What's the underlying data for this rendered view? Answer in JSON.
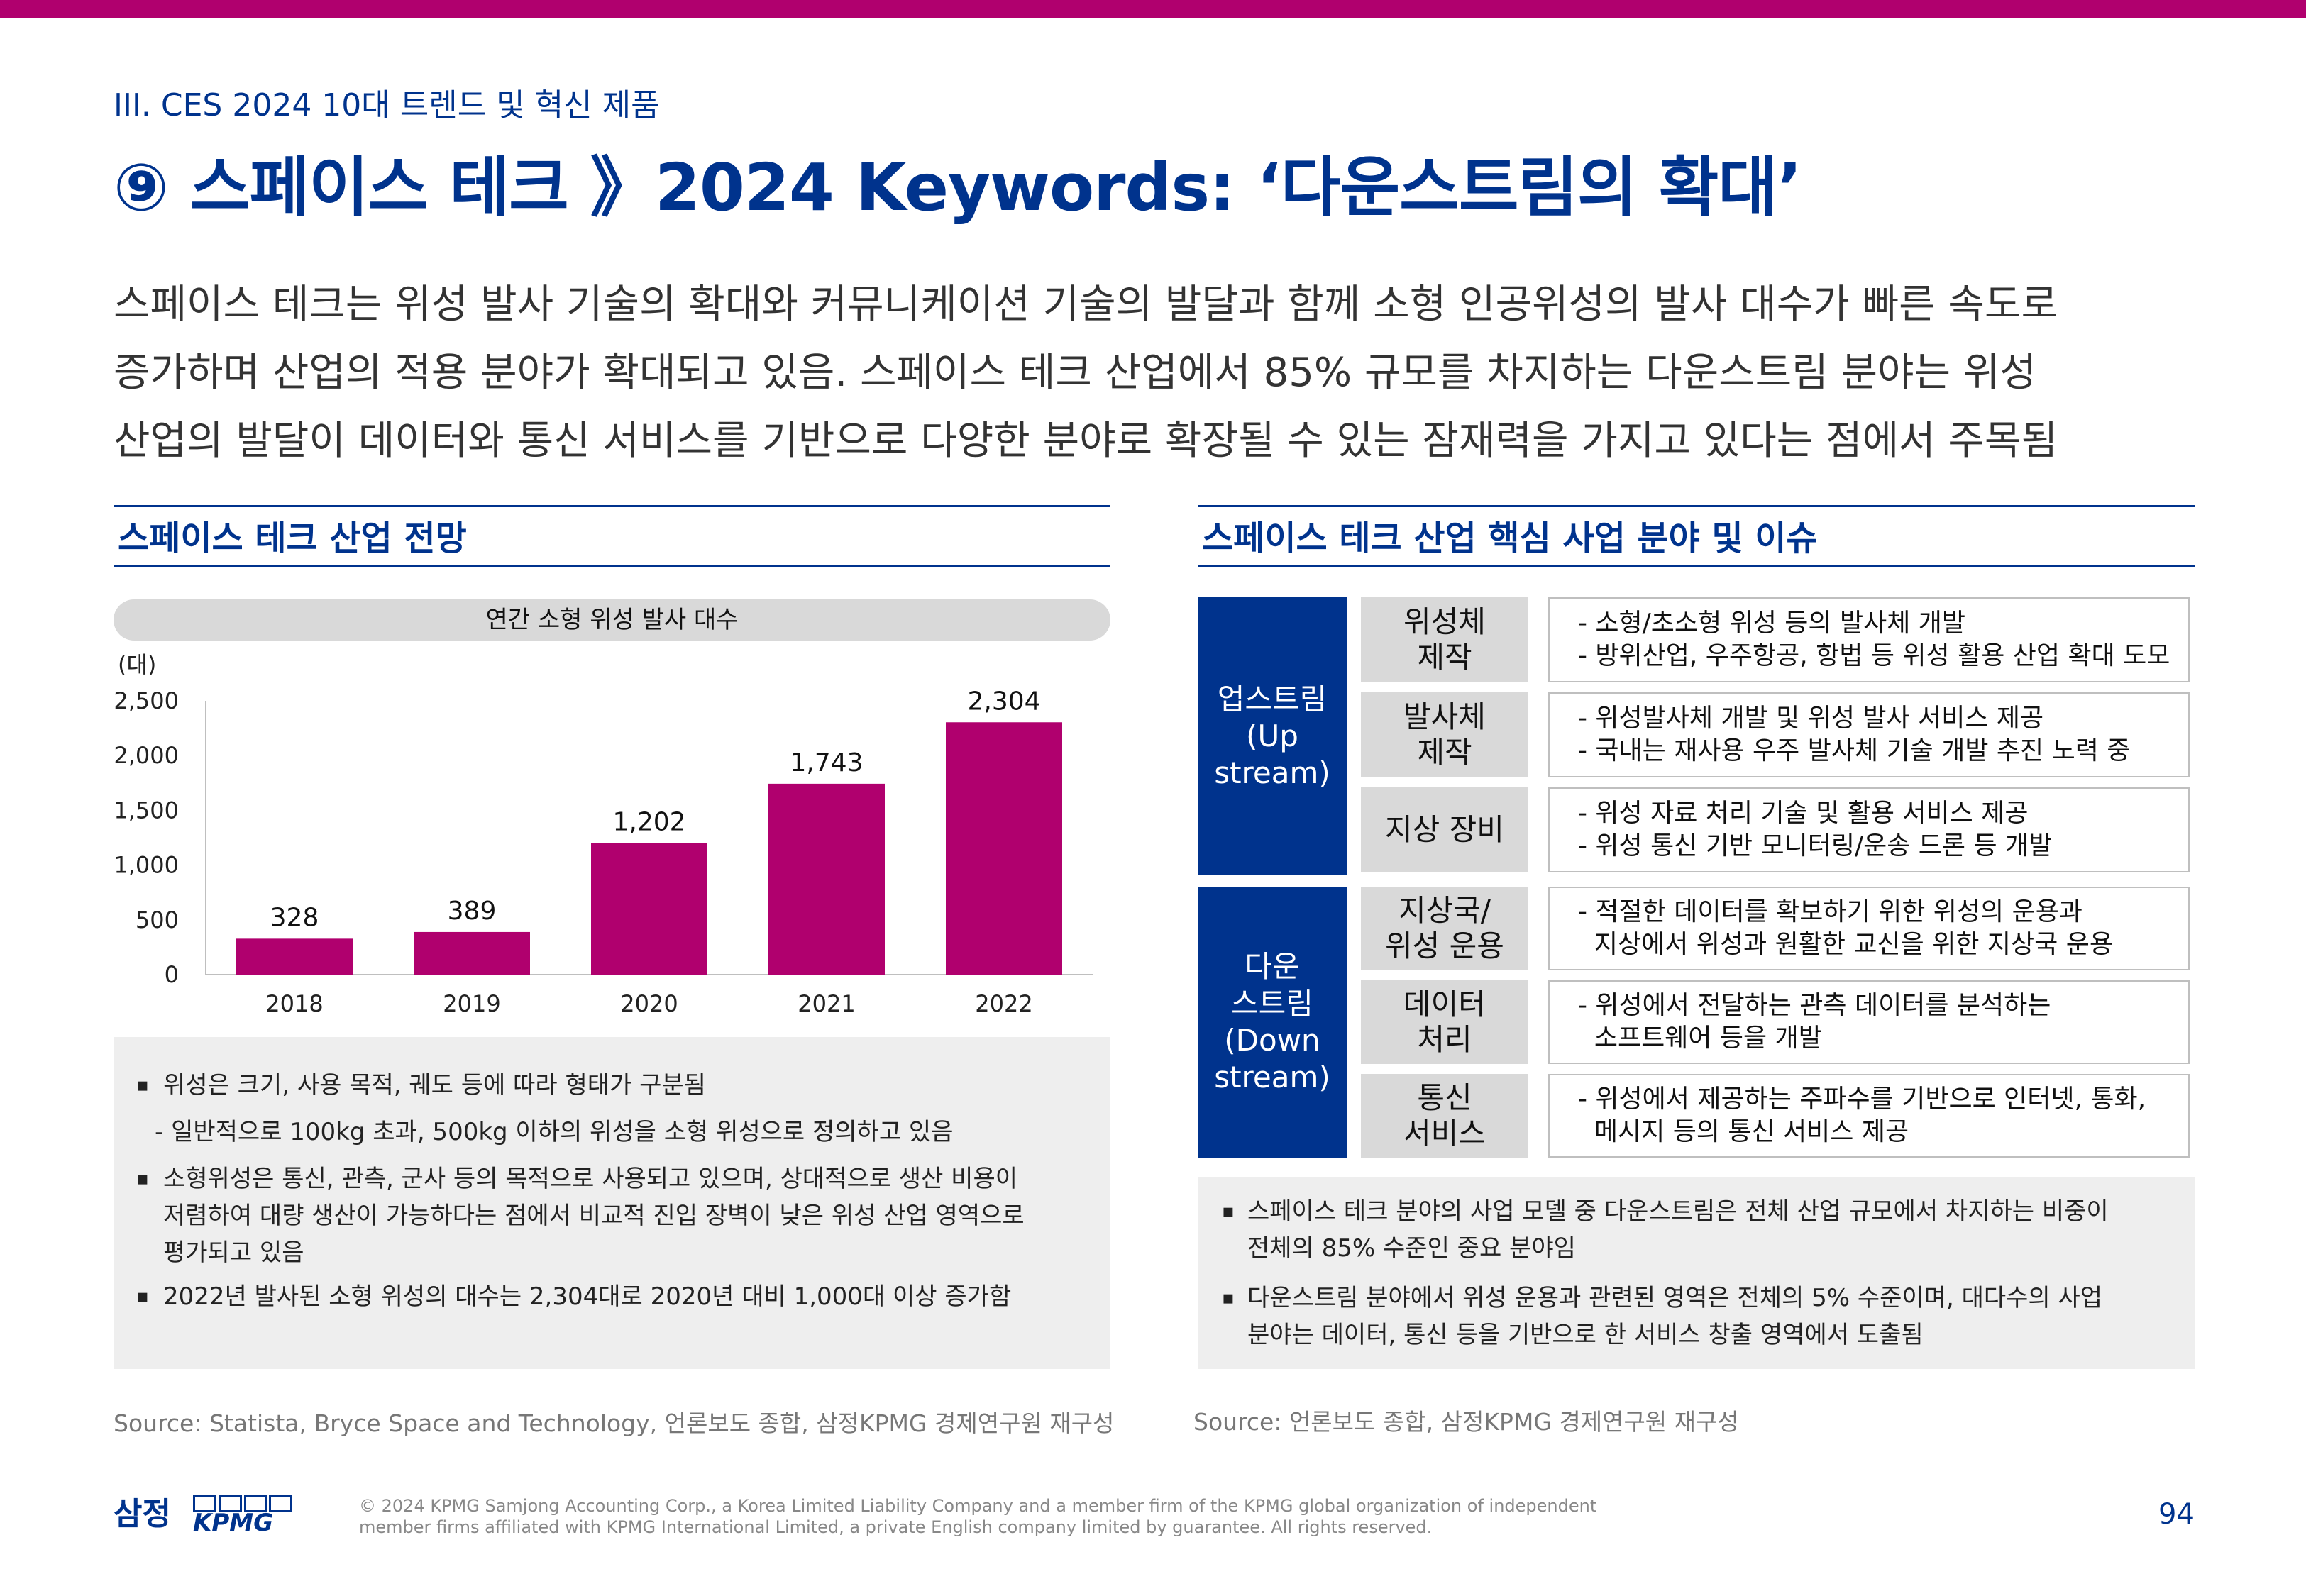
{
  "header": {
    "section": "III. CES 2024 10대 트렌드 및 혁신 제품",
    "title": "⑨ 스페이스 테크 》2024 Keywords: ‘다운스트림의 확대’"
  },
  "intro": [
    "스페이스 테크는 위성 발사 기술의 확대와 커뮤니케이션 기술의 발달과 함께 소형 인공위성의 발사 대수가 빠른 속도로",
    "증가하며 산업의 적용 분야가 확대되고 있음. 스페이스 테크 산업에서 85% 규모를 차지하는 다운스트림 분야는 위성",
    "산업의 발달이 데이터와 통신 서비스를 기반으로 다양한 분야로 확장될 수 있는 잠재력을 가지고 있다는 점에서 주목됨"
  ],
  "left": {
    "heading": "스페이스 테크 산업 전망",
    "notes": [
      {
        "type": "bullet",
        "text": "위성은 크기, 사용 목적, 궤도 등에 따라 형태가 구분됨"
      },
      {
        "type": "dash",
        "text": "- 일반적으로 100kg 초과, 500kg 이하의 위성을 소형 위성으로 정의하고 있음"
      },
      {
        "type": "bullet",
        "text": "소형위성은 통신, 관측, 군사 등의 목적으로 사용되고 있으며, 상대적으로 생산 비용이",
        "cont": [
          "저렴하여 대량 생산이 가능하다는 점에서 비교적 진입 장벽이 낮은 위성 산업 영역으로",
          "평가되고 있음"
        ]
      },
      {
        "type": "bullet",
        "text": "2022년 발사된 소형 위성의 대수는 2,304대로 2020년 대비 1,000대 이상 증가함"
      }
    ],
    "source": "Source: Statista, Bryce Space and Technology, 언론보도 종합, 삼정KPMG 경제연구원 재구성"
  },
  "chart_data": {
    "type": "bar",
    "title": "연간 소형 위성 발사 대수",
    "ylabel": "(대)",
    "categories": [
      "2018",
      "2019",
      "2020",
      "2021",
      "2022"
    ],
    "values": [
      328,
      389,
      1202,
      1743,
      2304
    ],
    "value_labels": [
      "328",
      "389",
      "1,202",
      "1,743",
      "2,304"
    ],
    "ylim": [
      0,
      2500
    ],
    "yticks": [
      0,
      500,
      1000,
      1500,
      2000,
      2500
    ],
    "ytick_labels": [
      "0",
      "500",
      "1,000",
      "1,500",
      "2,000",
      "2,500"
    ],
    "bar_color": "#b0006e",
    "grid": false
  },
  "right": {
    "heading": "스페이스 테크 산업 핵심 사업 분야 및 이슈",
    "groups": [
      {
        "name": [
          "업스트림",
          "(Up",
          "stream)"
        ],
        "rows": [
          {
            "sub": [
              "위성체",
              "제작"
            ],
            "lines": [
              "- 소형/초소형 위성 등의 발사체 개발",
              "- 방위산업, 우주항공, 항법 등 위성 활용 산업 확대 도모"
            ]
          },
          {
            "sub": [
              "발사체",
              "제작"
            ],
            "lines": [
              "- 위성발사체 개발 및 위성 발사 서비스 제공",
              "- 국내는 재사용 우주 발사체 기술 개발 추진 노력 중"
            ]
          },
          {
            "sub": [
              "지상 장비"
            ],
            "lines": [
              "- 위성 자료 처리 기술 및 활용 서비스 제공",
              "- 위성 통신 기반 모니터링/운송 드론 등 개발"
            ]
          }
        ]
      },
      {
        "name": [
          "다운",
          "스트림",
          "(Down",
          "stream)"
        ],
        "rows": [
          {
            "sub": [
              "지상국/",
              "위성 운용"
            ],
            "lines": [
              "- 적절한 데이터를 확보하기 위한 위성의 운용과",
              "  지상에서 위성과 원활한 교신을 위한 지상국 운용"
            ]
          },
          {
            "sub": [
              "데이터",
              "처리"
            ],
            "lines": [
              "- 위성에서 전달하는 관측 데이터를 분석하는",
              "  소프트웨어 등을 개발"
            ]
          },
          {
            "sub": [
              "통신",
              "서비스"
            ],
            "lines": [
              "- 위성에서 제공하는 주파수를 기반으로 인터넷, 통화,",
              "  메시지 등의 통신 서비스 제공"
            ]
          }
        ]
      }
    ],
    "notes": [
      {
        "text": "스페이스 테크 분야의 사업 모델 중 다운스트림은 전체 산업 규모에서 차지하는 비중이",
        "cont": "전체의 85% 수준인 중요 분야임"
      },
      {
        "text": "다운스트림 분야에서 위성 운용과 관련된 영역은 전체의 5% 수준이며, 대다수의 사업",
        "cont": "분야는 데이터, 통신 등을 기반으로 한 서비스 창출 영역에서 도출됨"
      }
    ],
    "source": "Source: 언론보도 종합, 삼정KPMG 경제연구원 재구성"
  },
  "footer": {
    "logo_ko": "삼정",
    "logo_en": "KPMG",
    "copyright": [
      "© 2024 KPMG Samjong Accounting Corp., a Korea Limited Liability Company and a member firm of the KPMG global organization of independent",
      "member firms affiliated with KPMG International Limited, a private English company limited by guarantee. All rights reserved."
    ],
    "page": "94"
  }
}
